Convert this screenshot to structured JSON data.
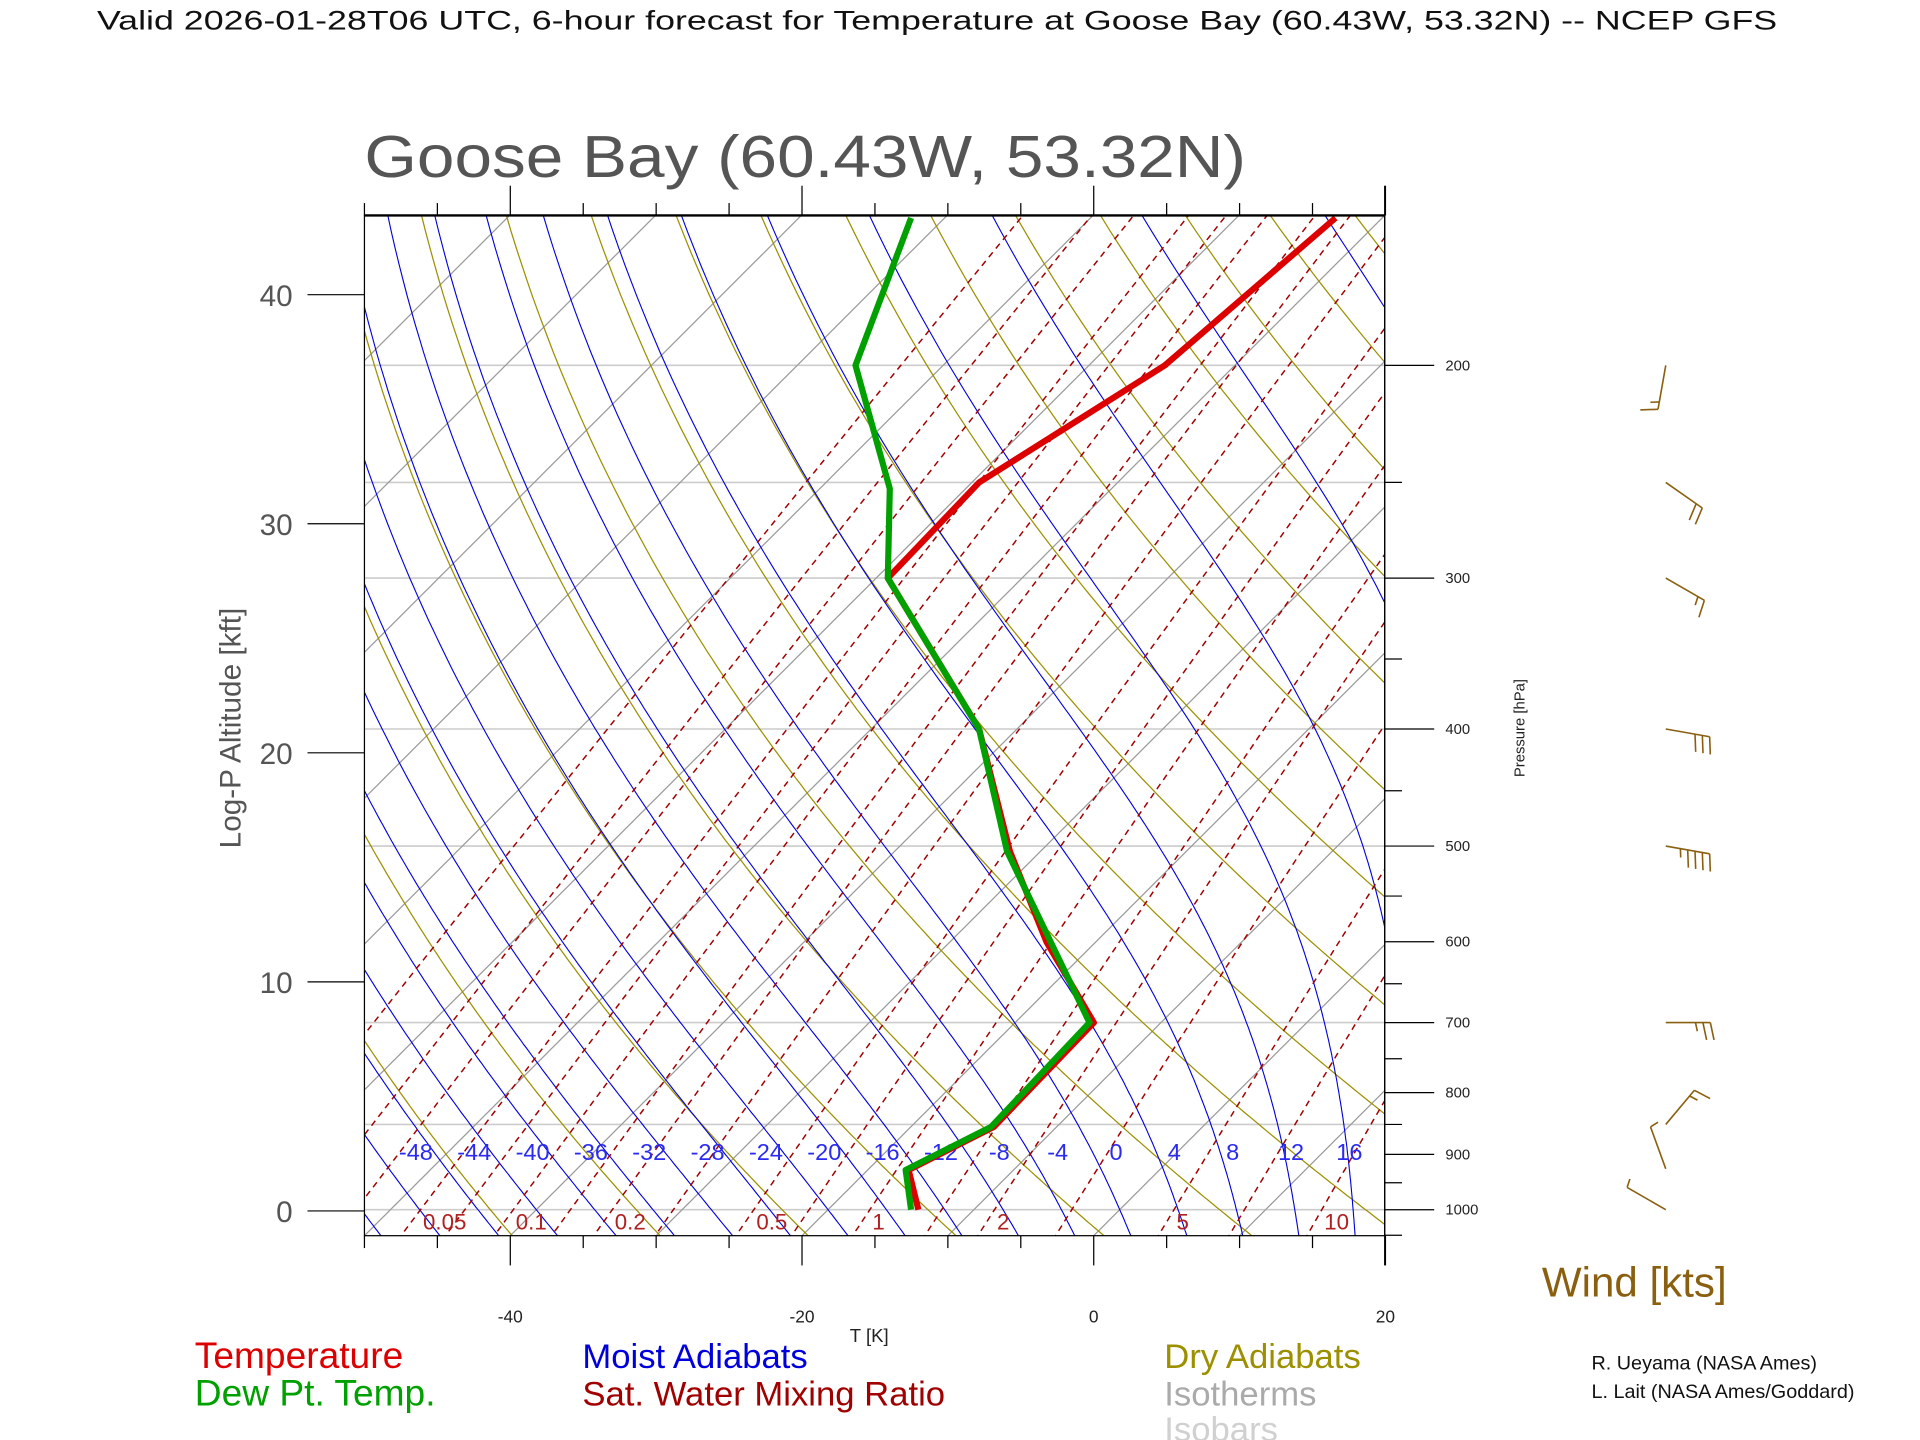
{
  "header": {
    "title": "Valid 2026-01-28T06 UTC, 6-hour forecast for Temperature at Goose Bay (60.43W, 53.32N) -- NCEP GFS"
  },
  "chart_data": {
    "type": "line",
    "subtype": "skew-t log-p diagram",
    "title": "Goose Bay (60.43W, 53.32N)",
    "xlabel": "T [K]",
    "ylabel_left": "Log-P Altitude [kft]",
    "ylabel_right": "Pressure [hPa]",
    "xlim": [
      -50,
      20
    ],
    "x_ticks": [
      "-40",
      "-20",
      "0",
      "20"
    ],
    "x_tick_values": [
      -40,
      -20,
      0,
      20
    ],
    "altitude_ticks": [
      "0",
      "10",
      "20",
      "30",
      "40"
    ],
    "altitude_tick_values": [
      0,
      10,
      20,
      30,
      40
    ],
    "pressure_ticks": [
      "1000",
      "900",
      "800",
      "700",
      "600",
      "500",
      "400",
      "300",
      "200"
    ],
    "pressure_tick_values": [
      1000,
      900,
      800,
      700,
      600,
      500,
      400,
      300,
      200
    ],
    "pressure_range_hpa": [
      1051,
      150
    ],
    "isobars_hpa": [
      1000,
      850,
      700,
      500,
      400,
      300,
      250,
      200
    ],
    "isotherm_step_c": 10,
    "dry_adiabat_theta_k": [
      220,
      480,
      10
    ],
    "moist_adiabat_labels": [
      "-48",
      "-44",
      "-40",
      "-36",
      "-32",
      "-28",
      "-24",
      "-20",
      "-16",
      "-12",
      "-8",
      "-4",
      "0",
      "4",
      "8",
      "12",
      "16"
    ],
    "moist_adiabat_values_c": [
      -48,
      -44,
      -40,
      -36,
      -32,
      -28,
      -24,
      -20,
      -16,
      -12,
      -8,
      -4,
      0,
      4,
      8,
      12,
      16
    ],
    "mixing_ratio_labels": [
      "0.05",
      "0.1",
      "0.2",
      "0.5",
      "1",
      "2",
      "5",
      "10"
    ],
    "mixing_ratio_labeled_values": [
      0.05,
      0.1,
      0.2,
      0.5,
      1,
      2,
      5,
      10
    ],
    "mixing_ratio_lines_gkg": [
      0.01,
      0.02,
      0.03,
      0.05,
      0.07,
      0.1,
      0.15,
      0.2,
      0.3,
      0.5,
      0.7,
      1,
      1.5,
      2,
      3,
      5,
      7,
      10,
      15,
      20,
      30
    ],
    "series": [
      {
        "name": "Temperature",
        "color": "#dd0000",
        "pressure_hpa": [
          1000,
          927,
          854,
          700,
          600,
          505,
          400,
          300,
          250,
          200,
          151
        ],
        "values_c": [
          -13.8,
          -17.2,
          -14.3,
          -14.6,
          -23.4,
          -32.1,
          -42.6,
          -59.2,
          -59.5,
          -54.8,
          -53.2
        ]
      },
      {
        "name": "Dew Pt. Temp.",
        "color": "#00a000",
        "pressure_hpa": [
          1000,
          927,
          854,
          700,
          505,
          400,
          300,
          253,
          200,
          151
        ],
        "values_c": [
          -14.3,
          -17.4,
          -14.5,
          -14.9,
          -32.3,
          -42.6,
          -59.2,
          -65.2,
          -76.0,
          -82.3
        ]
      }
    ],
    "wind": {
      "label": "Wind [kts]",
      "color": "#8a6010",
      "barbs": [
        {
          "pressure_hpa": 200,
          "direction_deg": 190,
          "speed_kt": 15
        },
        {
          "pressure_hpa": 250,
          "direction_deg": 125,
          "speed_kt": 20
        },
        {
          "pressure_hpa": 300,
          "direction_deg": 120,
          "speed_kt": 15
        },
        {
          "pressure_hpa": 400,
          "direction_deg": 100,
          "speed_kt": 30
        },
        {
          "pressure_hpa": 500,
          "direction_deg": 100,
          "speed_kt": 45
        },
        {
          "pressure_hpa": 700,
          "direction_deg": 90,
          "speed_kt": 25
        },
        {
          "pressure_hpa": 850,
          "direction_deg": 40,
          "speed_kt": 15
        },
        {
          "pressure_hpa": 925,
          "direction_deg": 340,
          "speed_kt": 5
        },
        {
          "pressure_hpa": 1000,
          "direction_deg": 300,
          "speed_kt": 5
        }
      ]
    },
    "legend": {
      "temperature": "Temperature",
      "dewpoint": "Dew Pt. Temp.",
      "moist_adiabats": "Moist Adiabats",
      "mixing_ratio": "Sat. Water Mixing Ratio",
      "dry_adiabats": "Dry Adiabats",
      "isotherms": "Isotherms",
      "isobars": "Isobars"
    },
    "colors": {
      "isotherm": "#9a9a9a",
      "isobar": "#cccccc",
      "dry_adiabat": "#9c9000",
      "moist_adiabat": "#0000dd",
      "mixing_ratio": "#a00000"
    }
  },
  "credits": {
    "line1": "R. Ueyama (NASA Ames)",
    "line2": "L. Lait (NASA Ames/Goddard)"
  }
}
